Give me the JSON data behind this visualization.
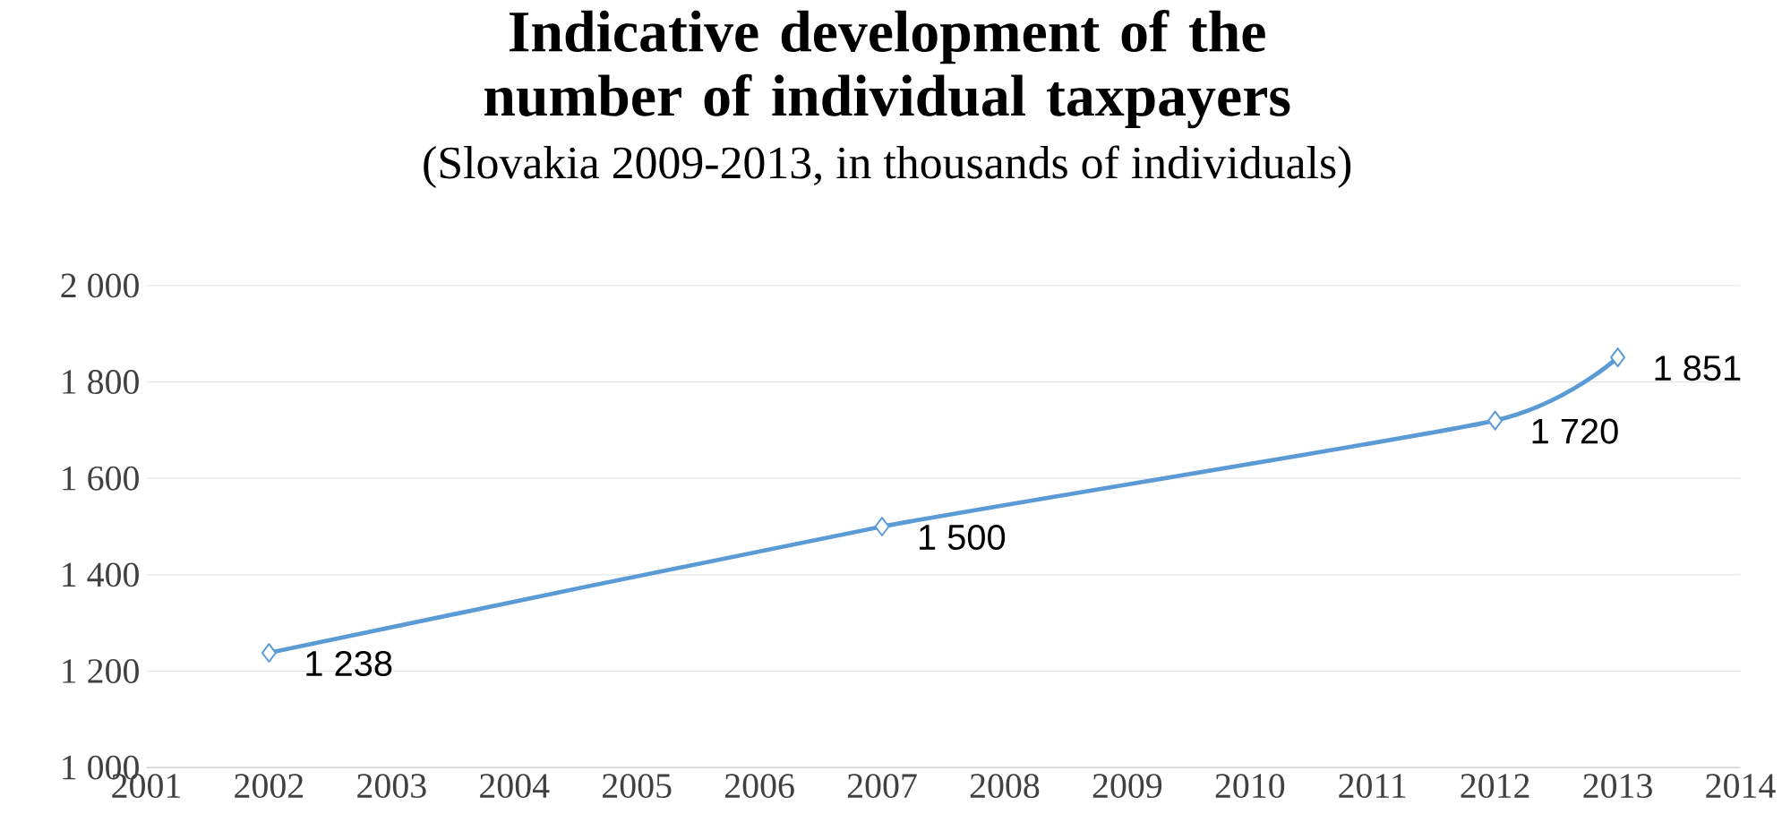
{
  "chart_data": {
    "type": "line",
    "title": "Indicative development of the number of individual taxpayers",
    "subtitle": "(Slovakia 2009-2013, in thousands of individuals)",
    "x": [
      2002,
      2007,
      2012,
      2013
    ],
    "series": [
      {
        "color": "#5b9bd5",
        "values": [
          1238,
          1500,
          1720,
          1851
        ],
        "value_labels": [
          "1 238",
          "1 500",
          "1 720",
          "1 851"
        ]
      }
    ],
    "xlim": [
      2001,
      2014
    ],
    "xticks": [
      2001,
      2002,
      2003,
      2004,
      2005,
      2006,
      2007,
      2008,
      2009,
      2010,
      2011,
      2012,
      2013,
      2014
    ],
    "ylim": [
      1000,
      2000
    ],
    "yticks": [
      {
        "value": 1000,
        "label": "1 000"
      },
      {
        "value": 1200,
        "label": "1 200"
      },
      {
        "value": 1400,
        "label": "1 400"
      },
      {
        "value": 1600,
        "label": "1 600"
      },
      {
        "value": 1800,
        "label": "1 800"
      },
      {
        "value": 2000,
        "label": "2 000"
      }
    ],
    "grid": "y",
    "marker": "diamond",
    "line_style": "solid"
  }
}
